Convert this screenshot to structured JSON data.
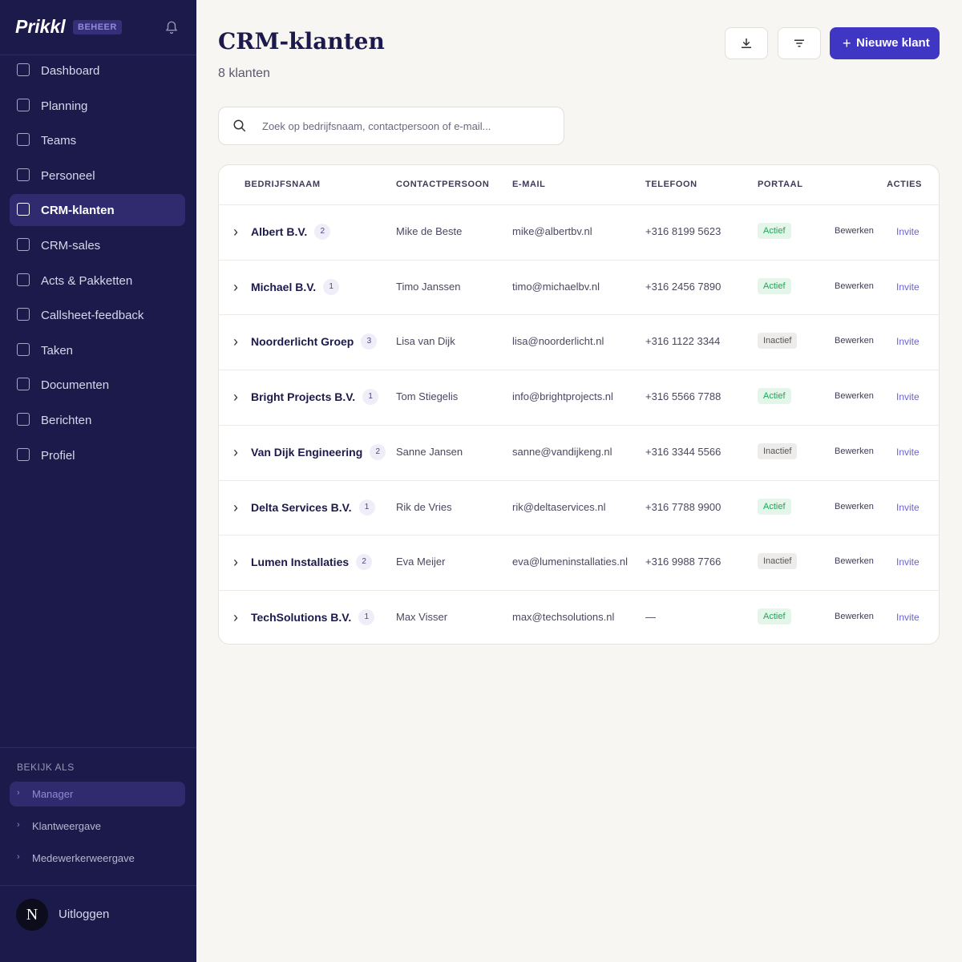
{
  "sidebar": {
    "logo": "Prikkl",
    "badge": "BEHEER",
    "nav": [
      "Dashboard",
      "Planning",
      "Teams",
      "Personeel",
      "CRM-klanten",
      "CRM-sales",
      "Acts & Pakketten",
      "Callsheet-feedback",
      "Taken",
      "Documenten",
      "Berichten",
      "Profiel"
    ],
    "active_index": 4,
    "view_as": {
      "label": "BEKIJK ALS",
      "options": [
        "Manager",
        "Klantweergave",
        "Medewerkerweergave"
      ]
    },
    "user": {
      "initial": "N",
      "logout": "Uitloggen"
    }
  },
  "header": {
    "title": "CRM-klanten",
    "subtitle": "8 klanten",
    "new_button": "Nieuwe klant"
  },
  "search": {
    "placeholder": "Zoek op bedrijfsnaam, contactpersoon of e-mail..."
  },
  "table": {
    "columns": [
      "BEDRIJFSNAAM",
      "CONTACTPERSOON",
      "E-MAIL",
      "TELEFOON",
      "PORTAAL",
      "ACTIES"
    ],
    "rows": [
      {
        "name": "Albert B.V.",
        "count": 2,
        "contact": "Mike de Beste",
        "email": "mike@albertbv.nl",
        "phone": "+316 8199 5623",
        "portal": {
          "label": "Actief",
          "color": "#22a35a",
          "bg": "#e3f6e9"
        },
        "edit": "Bewerken",
        "invite": "Invite"
      },
      {
        "name": "Michael B.V.",
        "count": 1,
        "contact": "Timo Janssen",
        "email": "timo@michaelbv.nl",
        "phone": "+316 2456 7890",
        "portal": {
          "label": "Actief",
          "color": "#22a35a",
          "bg": "#e3f6e9"
        },
        "edit": "Bewerken",
        "invite": "Invite"
      },
      {
        "name": "Noorderlicht Groep",
        "count": 3,
        "contact": "Lisa van Dijk",
        "email": "lisa@noorderlicht.nl",
        "phone": "+316 1122 3344",
        "portal": {
          "label": "Inactief",
          "color": "#555555",
          "bg": "#eeecea"
        },
        "edit": "Bewerken",
        "invite": "Invite"
      },
      {
        "name": "Bright Projects B.V.",
        "count": 1,
        "contact": "Tom Stiegelis",
        "email": "info@brightprojects.nl",
        "phone": "+316 5566 7788",
        "portal": {
          "label": "Actief",
          "color": "#22a35a",
          "bg": "#e3f6e9"
        },
        "edit": "Bewerken",
        "invite": "Invite"
      },
      {
        "name": "Van Dijk Engineering",
        "count": 2,
        "contact": "Sanne Jansen",
        "email": "sanne@vandijkeng.nl",
        "phone": "+316 3344 5566",
        "portal": {
          "label": "Inactief",
          "color": "#555555",
          "bg": "#eeecea"
        },
        "edit": "Bewerken",
        "invite": "Invite"
      },
      {
        "name": "Delta Services B.V.",
        "count": 1,
        "contact": "Rik de Vries",
        "email": "rik@deltaservices.nl",
        "phone": "+316 7788 9900",
        "portal": {
          "label": "Actief",
          "color": "#22a35a",
          "bg": "#e3f6e9"
        },
        "edit": "Bewerken",
        "invite": "Invite"
      },
      {
        "name": "Lumen Installaties",
        "count": 2,
        "contact": "Eva Meijer",
        "email": "eva@lumeninstallaties.nl",
        "phone": "+316 9988 7766",
        "portal": {
          "label": "Inactief",
          "color": "#555555",
          "bg": "#eeecea"
        },
        "edit": "Bewerken",
        "invite": "Invite"
      },
      {
        "name": "TechSolutions B.V.",
        "count": 1,
        "contact": "Max Visser",
        "email": "max@techsolutions.nl",
        "phone": "—",
        "portal": {
          "label": "Actief",
          "color": "#22a35a",
          "bg": "#e3f6e9"
        },
        "edit": "Bewerken",
        "invite": "Invite"
      }
    ]
  }
}
